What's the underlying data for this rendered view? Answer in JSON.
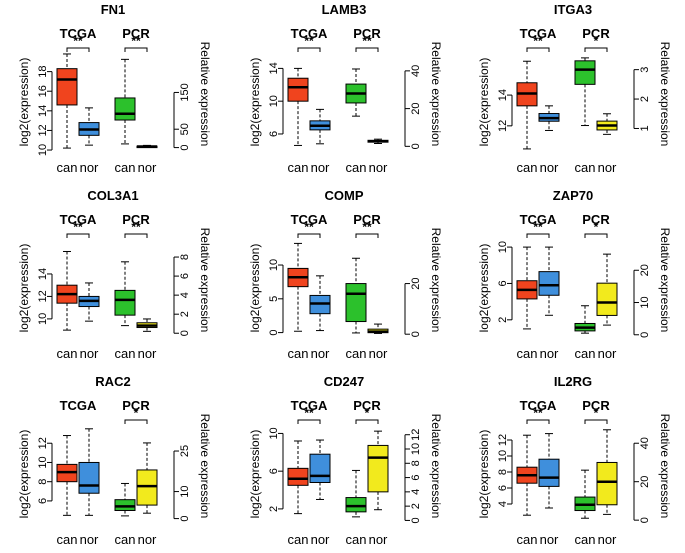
{
  "figure": {
    "left_axis_label": "log2(expression)",
    "right_axis_label": "Relative expression",
    "group_labels": [
      "TCGA",
      "PCR"
    ],
    "category_labels": [
      "can",
      "nor",
      "can",
      "nor"
    ],
    "colors": {
      "tcga_can": "#f0441e",
      "tcga_nor": "#3f8fdc",
      "pcr_can": "#2cc12c",
      "pcr_nor": "#f2ea1d"
    }
  },
  "chart_data": [
    {
      "type": "boxplot",
      "title": "FN1",
      "left_ylim": [
        9.8,
        20
      ],
      "left_ticks": [
        10,
        12,
        14,
        16,
        18
      ],
      "right_ylim": [
        -12,
        260
      ],
      "right_ticks": [
        0,
        50,
        150
      ],
      "sig": [
        "**",
        "**"
      ],
      "boxes": [
        {
          "group": "TCGA",
          "cat": "can",
          "min": 10.2,
          "q1": 14.6,
          "median": 17.2,
          "q3": 18.3,
          "max": 19.8
        },
        {
          "group": "TCGA",
          "cat": "nor",
          "min": 10.5,
          "q1": 11.5,
          "median": 12.1,
          "q3": 12.8,
          "max": 14.3
        },
        {
          "group": "PCR",
          "cat": "can",
          "min": 10,
          "q1": 75,
          "median": 92,
          "q3": 135,
          "max": 240
        },
        {
          "group": "PCR",
          "cat": "nor",
          "min": 1,
          "q1": 2,
          "median": 3,
          "q3": 4,
          "max": 6
        }
      ]
    },
    {
      "type": "boxplot",
      "title": "LAMB3",
      "left_ylim": [
        3.8,
        16
      ],
      "left_ticks": [
        6,
        10,
        14
      ],
      "right_ylim": [
        -3,
        50
      ],
      "right_ticks": [
        0,
        20,
        40
      ],
      "sig": [
        "**",
        "**"
      ],
      "boxes": [
        {
          "group": "TCGA",
          "cat": "can",
          "min": 4.6,
          "q1": 10.0,
          "median": 11.7,
          "q3": 12.8,
          "max": 14.0
        },
        {
          "group": "TCGA",
          "cat": "nor",
          "min": 4.8,
          "q1": 6.5,
          "median": 7.0,
          "q3": 7.6,
          "max": 9.0
        },
        {
          "group": "PCR",
          "cat": "can",
          "min": 16,
          "q1": 23,
          "median": 28,
          "q3": 33,
          "max": 41
        },
        {
          "group": "PCR",
          "cat": "nor",
          "min": 1.5,
          "q1": 2.2,
          "median": 2.7,
          "q3": 3.2,
          "max": 3.8
        }
      ]
    },
    {
      "type": "boxplot",
      "title": "ITGA3",
      "left_ylim": [
        10.3,
        16.8
      ],
      "left_ticks": [
        12,
        14
      ],
      "right_ylim": [
        0.2,
        3.6
      ],
      "right_ticks": [
        1.0,
        2.0,
        3.0
      ],
      "sig": [
        "**",
        "*"
      ],
      "boxes": [
        {
          "group": "TCGA",
          "cat": "can",
          "min": 10.5,
          "q1": 13.3,
          "median": 14.1,
          "q3": 14.8,
          "max": 16.2
        },
        {
          "group": "TCGA",
          "cat": "nor",
          "min": 11.7,
          "q1": 12.3,
          "median": 12.5,
          "q3": 12.8,
          "max": 13.3
        },
        {
          "group": "PCR",
          "cat": "can",
          "min": 1.1,
          "q1": 2.5,
          "median": 3.0,
          "q3": 3.3,
          "max": 3.4
        },
        {
          "group": "PCR",
          "cat": "nor",
          "min": 0.8,
          "q1": 0.95,
          "median": 1.1,
          "q3": 1.25,
          "max": 1.5
        }
      ]
    },
    {
      "type": "boxplot",
      "title": "COL3A1",
      "left_ylim": [
        8.3,
        17.2
      ],
      "left_ticks": [
        10,
        12,
        14
      ],
      "right_ylim": [
        -0.5,
        10
      ],
      "right_ticks": [
        0,
        2,
        4,
        6,
        8
      ],
      "sig": [
        "**",
        "**"
      ],
      "boxes": [
        {
          "group": "TCGA",
          "cat": "can",
          "min": 9.0,
          "q1": 11.4,
          "median": 12.2,
          "q3": 13.0,
          "max": 16.0
        },
        {
          "group": "TCGA",
          "cat": "nor",
          "min": 9.8,
          "q1": 11.1,
          "median": 11.6,
          "q3": 12.0,
          "max": 13.2
        },
        {
          "group": "PCR",
          "cat": "can",
          "min": 0.8,
          "q1": 1.9,
          "median": 3.5,
          "q3": 4.5,
          "max": 7.5
        },
        {
          "group": "PCR",
          "cat": "nor",
          "min": 0.2,
          "q1": 0.6,
          "median": 0.8,
          "q3": 1.1,
          "max": 1.5
        }
      ]
    },
    {
      "type": "boxplot",
      "title": "COMP",
      "left_ylim": [
        -0.8,
        14
      ],
      "left_ticks": [
        0,
        5,
        10
      ],
      "right_ylim": [
        -1.5,
        38
      ],
      "right_ticks": [
        0,
        20
      ],
      "sig": [
        "**",
        "**"
      ],
      "boxes": [
        {
          "group": "TCGA",
          "cat": "can",
          "min": 0.2,
          "q1": 6.8,
          "median": 8.2,
          "q3": 9.5,
          "max": 13.2
        },
        {
          "group": "TCGA",
          "cat": "nor",
          "min": 0.3,
          "q1": 2.8,
          "median": 4.3,
          "q3": 5.5,
          "max": 8.4
        },
        {
          "group": "PCR",
          "cat": "can",
          "min": 0.5,
          "q1": 5,
          "median": 16,
          "q3": 20,
          "max": 30
        },
        {
          "group": "PCR",
          "cat": "nor",
          "min": 0.3,
          "q1": 0.6,
          "median": 1.0,
          "q3": 2.0,
          "max": 4.0
        }
      ]
    },
    {
      "type": "boxplot",
      "title": "ZAP70",
      "left_ylim": [
        0,
        11
      ],
      "left_ticks": [
        2,
        6,
        10
      ],
      "right_ylim": [
        -1,
        30
      ],
      "right_ticks": [
        0,
        10,
        20
      ],
      "sig": [
        "**",
        "*"
      ],
      "boxes": [
        {
          "group": "TCGA",
          "cat": "can",
          "min": 1.0,
          "q1": 4.3,
          "median": 5.3,
          "q3": 6.3,
          "max": 10.0
        },
        {
          "group": "TCGA",
          "cat": "nor",
          "min": 2.5,
          "q1": 4.7,
          "median": 5.8,
          "q3": 7.3,
          "max": 10.0
        },
        {
          "group": "PCR",
          "cat": "can",
          "min": 0.5,
          "q1": 1.2,
          "median": 2.2,
          "q3": 3.5,
          "max": 9
        },
        {
          "group": "PCR",
          "cat": "nor",
          "min": 3,
          "q1": 6,
          "median": 10,
          "q3": 16,
          "max": 25
        }
      ]
    },
    {
      "type": "boxplot",
      "title": "RAC2",
      "left_ylim": [
        3.6,
        14
      ],
      "left_ticks": [
        6,
        8,
        10,
        12
      ],
      "right_ylim": [
        -2,
        35
      ],
      "right_ticks": [
        0,
        10,
        25
      ],
      "sig": [
        "",
        "*"
      ],
      "boxes": [
        {
          "group": "TCGA",
          "cat": "can",
          "min": 4.5,
          "q1": 8.0,
          "median": 9.0,
          "q3": 9.8,
          "max": 12.8
        },
        {
          "group": "TCGA",
          "cat": "nor",
          "min": 4.5,
          "q1": 6.8,
          "median": 7.6,
          "q3": 10.0,
          "max": 13.5
        },
        {
          "group": "PCR",
          "cat": "can",
          "min": 1,
          "q1": 3,
          "median": 4.5,
          "q3": 7,
          "max": 13
        },
        {
          "group": "PCR",
          "cat": "nor",
          "min": 2,
          "q1": 5,
          "median": 12,
          "q3": 18,
          "max": 28
        }
      ]
    },
    {
      "type": "boxplot",
      "title": "CD247",
      "left_ylim": [
        0.4,
        11
      ],
      "left_ticks": [
        2,
        6,
        10
      ],
      "right_ylim": [
        -0.5,
        13.5
      ],
      "right_ticks": [
        0,
        2,
        4,
        6,
        8,
        10,
        12
      ],
      "sig": [
        "**",
        "*"
      ],
      "boxes": [
        {
          "group": "TCGA",
          "cat": "can",
          "min": 1.5,
          "q1": 4.5,
          "median": 5.2,
          "q3": 6.3,
          "max": 9.2
        },
        {
          "group": "TCGA",
          "cat": "nor",
          "min": 3.0,
          "q1": 4.8,
          "median": 5.5,
          "q3": 7.8,
          "max": 9.3
        },
        {
          "group": "PCR",
          "cat": "can",
          "min": 0.5,
          "q1": 1.2,
          "median": 2.0,
          "q3": 3.2,
          "max": 7
        },
        {
          "group": "PCR",
          "cat": "nor",
          "min": 1.5,
          "q1": 4,
          "median": 8.8,
          "q3": 10.5,
          "max": 12.5
        }
      ]
    },
    {
      "type": "boxplot",
      "title": "IL2RG",
      "left_ylim": [
        1.5,
        14
      ],
      "left_ticks": [
        4,
        6,
        8,
        10,
        12
      ],
      "right_ylim": [
        -2,
        50
      ],
      "right_ticks": [
        0,
        20,
        40
      ],
      "sig": [
        "**",
        "*"
      ],
      "boxes": [
        {
          "group": "TCGA",
          "cat": "can",
          "min": 2.6,
          "q1": 6.6,
          "median": 7.6,
          "q3": 8.6,
          "max": 12.6
        },
        {
          "group": "TCGA",
          "cat": "nor",
          "min": 3.5,
          "q1": 6.2,
          "median": 7.3,
          "q3": 9.6,
          "max": 12.8
        },
        {
          "group": "PCR",
          "cat": "can",
          "min": 1,
          "q1": 5,
          "median": 8,
          "q3": 12,
          "max": 26
        },
        {
          "group": "PCR",
          "cat": "nor",
          "min": 3,
          "q1": 8,
          "median": 20,
          "q3": 30,
          "max": 47
        }
      ]
    }
  ]
}
